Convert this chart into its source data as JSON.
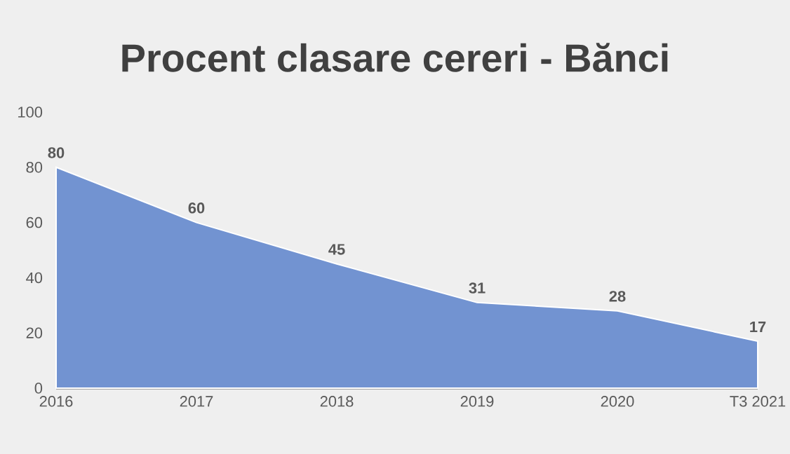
{
  "chart_data": {
    "type": "area",
    "title": "Procent clasare cereri - Bănci",
    "categories": [
      "2016",
      "2017",
      "2018",
      "2019",
      "2020",
      "T3 2021"
    ],
    "values": [
      80,
      60,
      45,
      31,
      28,
      17
    ],
    "color": "#7293d1",
    "ylim": [
      0,
      100
    ],
    "yticks": [
      0,
      20,
      40,
      60,
      80,
      100
    ],
    "data_labels": true
  }
}
